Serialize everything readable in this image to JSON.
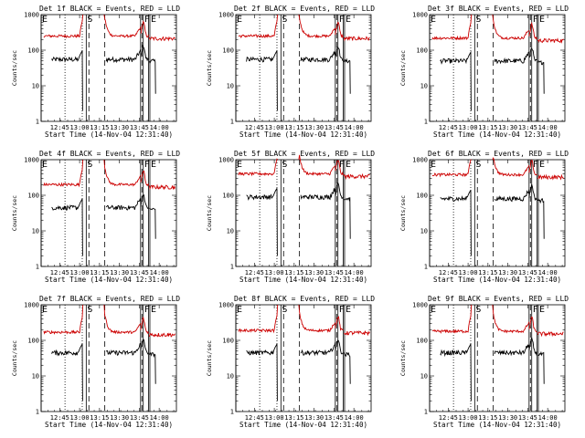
{
  "figure": {
    "background": "#ffffff"
  },
  "chart_data": [
    {
      "type": "line",
      "title": "Det 1f BLACK = Events, RED = LLD",
      "xlabel": "Start Time (14-Nov-04 12:31:40)",
      "ylabel": "Counts/sec",
      "yscale": "log",
      "ylim": [
        1,
        1000
      ],
      "xlim": [
        "12:31",
        "14:13"
      ],
      "yticks": [
        "1",
        "10",
        "100",
        "1000"
      ],
      "xticks": [
        "12:45",
        "13:00",
        "13:15",
        "13:30",
        "13:45",
        "14:00"
      ],
      "markers": [
        {
          "label": "E",
          "time": "12:31",
          "style": "solid"
        },
        {
          "label": "S",
          "time": "13:05",
          "style": "solid"
        },
        {
          "label": "F",
          "time": "13:48",
          "style": "solid"
        },
        {
          "label": "E",
          "time": "13:53",
          "style": "solid"
        }
      ],
      "dotted_lines": [
        "12:49",
        "13:02"
      ],
      "dashed_lines": [
        "13:07",
        "13:19",
        "13:47"
      ],
      "solid_lines": [
        "13:46",
        "13:52"
      ],
      "series": [
        {
          "name": "Events",
          "color": "#000000",
          "level": 55
        },
        {
          "name": "LLD",
          "color": "#cc0000",
          "level": 250
        }
      ]
    },
    {
      "type": "line",
      "title": "Det 2f BLACK = Events, RED = LLD",
      "xlabel": "Start Time (14-Nov-04 12:31:40)",
      "ylabel": "Counts/sec",
      "yscale": "log",
      "ylim": [
        1,
        1000
      ],
      "xlim": [
        "12:31",
        "14:13"
      ],
      "yticks": [
        "1",
        "10",
        "100",
        "1000"
      ],
      "xticks": [
        "12:45",
        "13:00",
        "13:15",
        "13:30",
        "13:45",
        "14:00"
      ],
      "markers": [
        {
          "label": "E",
          "time": "12:31",
          "style": "solid"
        },
        {
          "label": "S",
          "time": "13:05",
          "style": "solid"
        },
        {
          "label": "F",
          "time": "13:48",
          "style": "solid"
        },
        {
          "label": "E",
          "time": "13:53",
          "style": "solid"
        }
      ],
      "dotted_lines": [
        "12:49",
        "13:02"
      ],
      "dashed_lines": [
        "13:07",
        "13:19",
        "13:47"
      ],
      "solid_lines": [
        "13:46",
        "13:52"
      ],
      "series": [
        {
          "name": "Events",
          "color": "#000000",
          "level": 55
        },
        {
          "name": "LLD",
          "color": "#cc0000",
          "level": 250
        }
      ]
    },
    {
      "type": "line",
      "title": "Det 3f BLACK = Events, RED = LLD",
      "xlabel": "Start Time (14-Nov-04 12:31:40)",
      "ylabel": "Counts/sec",
      "yscale": "log",
      "ylim": [
        1,
        1000
      ],
      "xlim": [
        "12:31",
        "14:13"
      ],
      "yticks": [
        "1",
        "10",
        "100",
        "1000"
      ],
      "xticks": [
        "12:45",
        "13:00",
        "13:15",
        "13:30",
        "13:45",
        "14:00"
      ],
      "markers": [
        {
          "label": "E",
          "time": "12:31",
          "style": "solid"
        },
        {
          "label": "S",
          "time": "13:05",
          "style": "solid"
        },
        {
          "label": "F",
          "time": "13:48",
          "style": "solid"
        },
        {
          "label": "E",
          "time": "13:53",
          "style": "solid"
        }
      ],
      "dotted_lines": [
        "12:49",
        "13:02"
      ],
      "dashed_lines": [
        "13:07",
        "13:19",
        "13:47"
      ],
      "solid_lines": [
        "13:46",
        "13:52"
      ],
      "series": [
        {
          "name": "Events",
          "color": "#000000",
          "level": 50
        },
        {
          "name": "LLD",
          "color": "#cc0000",
          "level": 220
        }
      ]
    },
    {
      "type": "line",
      "title": "Det 4f BLACK = Events, RED = LLD",
      "xlabel": "Start Time (14-Nov-04 12:31:40)",
      "ylabel": "Counts/sec",
      "yscale": "log",
      "ylim": [
        1,
        1000
      ],
      "xlim": [
        "12:31",
        "14:13"
      ],
      "yticks": [
        "1",
        "10",
        "100",
        "1000"
      ],
      "xticks": [
        "12:45",
        "13:00",
        "13:15",
        "13:30",
        "13:45",
        "14:00"
      ],
      "markers": [
        {
          "label": "E",
          "time": "12:31",
          "style": "solid"
        },
        {
          "label": "S",
          "time": "13:05",
          "style": "solid"
        },
        {
          "label": "F",
          "time": "13:48",
          "style": "solid"
        },
        {
          "label": "E",
          "time": "13:53",
          "style": "solid"
        }
      ],
      "dotted_lines": [
        "12:49",
        "13:02"
      ],
      "dashed_lines": [
        "13:07",
        "13:19",
        "13:47"
      ],
      "solid_lines": [
        "13:46",
        "13:52"
      ],
      "series": [
        {
          "name": "Events",
          "color": "#000000",
          "level": 45
        },
        {
          "name": "LLD",
          "color": "#cc0000",
          "level": 200
        }
      ]
    },
    {
      "type": "line",
      "title": "Det 5f BLACK = Events, RED = LLD",
      "xlabel": "Start Time (14-Nov-04 12:31:40)",
      "ylabel": "Counts/sec",
      "yscale": "log",
      "ylim": [
        1,
        1000
      ],
      "xlim": [
        "12:31",
        "14:13"
      ],
      "yticks": [
        "1",
        "10",
        "100",
        "1000"
      ],
      "xticks": [
        "12:45",
        "13:00",
        "13:15",
        "13:30",
        "13:45",
        "14:00"
      ],
      "markers": [
        {
          "label": "E",
          "time": "12:31",
          "style": "solid"
        },
        {
          "label": "S",
          "time": "13:05",
          "style": "solid"
        },
        {
          "label": "F",
          "time": "13:48",
          "style": "solid"
        },
        {
          "label": "E",
          "time": "13:53",
          "style": "solid"
        }
      ],
      "dotted_lines": [
        "12:49",
        "13:02"
      ],
      "dashed_lines": [
        "13:07",
        "13:19",
        "13:47"
      ],
      "solid_lines": [
        "13:46",
        "13:52"
      ],
      "series": [
        {
          "name": "Events",
          "color": "#000000",
          "level": 90
        },
        {
          "name": "LLD",
          "color": "#cc0000",
          "level": 400
        }
      ]
    },
    {
      "type": "line",
      "title": "Det 6f BLACK = Events, RED = LLD",
      "xlabel": "Start Time (14-Nov-04 12:31:40)",
      "ylabel": "Counts/sec",
      "yscale": "log",
      "ylim": [
        1,
        1000
      ],
      "xlim": [
        "12:31",
        "14:13"
      ],
      "yticks": [
        "1",
        "10",
        "100",
        "1000"
      ],
      "xticks": [
        "12:45",
        "13:00",
        "13:15",
        "13:30",
        "13:45",
        "14:00"
      ],
      "markers": [
        {
          "label": "E",
          "time": "12:31",
          "style": "solid"
        },
        {
          "label": "S",
          "time": "13:05",
          "style": "solid"
        },
        {
          "label": "F",
          "time": "13:48",
          "style": "solid"
        },
        {
          "label": "E",
          "time": "13:53",
          "style": "solid"
        }
      ],
      "dotted_lines": [
        "12:49",
        "13:02"
      ],
      "dashed_lines": [
        "13:07",
        "13:19",
        "13:47"
      ],
      "solid_lines": [
        "13:46",
        "13:52"
      ],
      "series": [
        {
          "name": "Events",
          "color": "#000000",
          "level": 80
        },
        {
          "name": "LLD",
          "color": "#cc0000",
          "level": 380
        }
      ]
    },
    {
      "type": "line",
      "title": "Det 7f BLACK = Events, RED = LLD",
      "xlabel": "Start Time (14-Nov-04 12:31:40)",
      "ylabel": "Counts/sec",
      "yscale": "log",
      "ylim": [
        1,
        1000
      ],
      "xlim": [
        "12:31",
        "14:13"
      ],
      "yticks": [
        "1",
        "10",
        "100",
        "1000"
      ],
      "xticks": [
        "12:45",
        "13:00",
        "13:15",
        "13:30",
        "13:45",
        "14:00"
      ],
      "markers": [
        {
          "label": "E",
          "time": "12:31",
          "style": "solid"
        },
        {
          "label": "S",
          "time": "13:05",
          "style": "solid"
        },
        {
          "label": "F",
          "time": "13:48",
          "style": "solid"
        },
        {
          "label": "E",
          "time": "13:53",
          "style": "solid"
        }
      ],
      "dotted_lines": [
        "12:49",
        "13:02"
      ],
      "dashed_lines": [
        "13:07",
        "13:19",
        "13:47"
      ],
      "solid_lines": [
        "13:46",
        "13:52"
      ],
      "series": [
        {
          "name": "Events",
          "color": "#000000",
          "level": 45
        },
        {
          "name": "LLD",
          "color": "#cc0000",
          "level": 170
        }
      ]
    },
    {
      "type": "line",
      "title": "Det 8f BLACK = Events, RED = LLD",
      "xlabel": "Start Time (14-Nov-04 12:31:40)",
      "ylabel": "Counts/sec",
      "yscale": "log",
      "ylim": [
        1,
        1000
      ],
      "xlim": [
        "12:31",
        "14:13"
      ],
      "yticks": [
        "1",
        "10",
        "100",
        "1000"
      ],
      "xticks": [
        "12:45",
        "13:00",
        "13:15",
        "13:30",
        "13:45",
        "14:00"
      ],
      "markers": [
        {
          "label": "E",
          "time": "12:31",
          "style": "solid"
        },
        {
          "label": "S",
          "time": "13:05",
          "style": "solid"
        },
        {
          "label": "F",
          "time": "13:48",
          "style": "solid"
        },
        {
          "label": "E",
          "time": "13:53",
          "style": "solid"
        }
      ],
      "dotted_lines": [
        "12:49",
        "13:02"
      ],
      "dashed_lines": [
        "13:07",
        "13:19",
        "13:47"
      ],
      "solid_lines": [
        "13:46",
        "13:52"
      ],
      "series": [
        {
          "name": "Events",
          "color": "#000000",
          "level": 45
        },
        {
          "name": "LLD",
          "color": "#cc0000",
          "level": 190
        }
      ]
    },
    {
      "type": "line",
      "title": "Det 9f BLACK = Events, RED = LLD",
      "xlabel": "Start Time (14-Nov-04 12:31:40)",
      "ylabel": "Counts/sec",
      "yscale": "log",
      "ylim": [
        1,
        1000
      ],
      "xlim": [
        "12:31",
        "14:13"
      ],
      "yticks": [
        "1",
        "10",
        "100",
        "1000"
      ],
      "xticks": [
        "12:45",
        "13:00",
        "13:15",
        "13:30",
        "13:45",
        "14:00"
      ],
      "markers": [
        {
          "label": "E",
          "time": "12:31",
          "style": "solid"
        },
        {
          "label": "S",
          "time": "13:05",
          "style": "solid"
        },
        {
          "label": "F",
          "time": "13:48",
          "style": "solid"
        },
        {
          "label": "E",
          "time": "13:53",
          "style": "solid"
        }
      ],
      "dotted_lines": [
        "12:49",
        "13:02"
      ],
      "dashed_lines": [
        "13:07",
        "13:19",
        "13:47"
      ],
      "solid_lines": [
        "13:46",
        "13:52"
      ],
      "series": [
        {
          "name": "Events",
          "color": "#000000",
          "level": 45
        },
        {
          "name": "LLD",
          "color": "#cc0000",
          "level": 180
        }
      ]
    }
  ]
}
